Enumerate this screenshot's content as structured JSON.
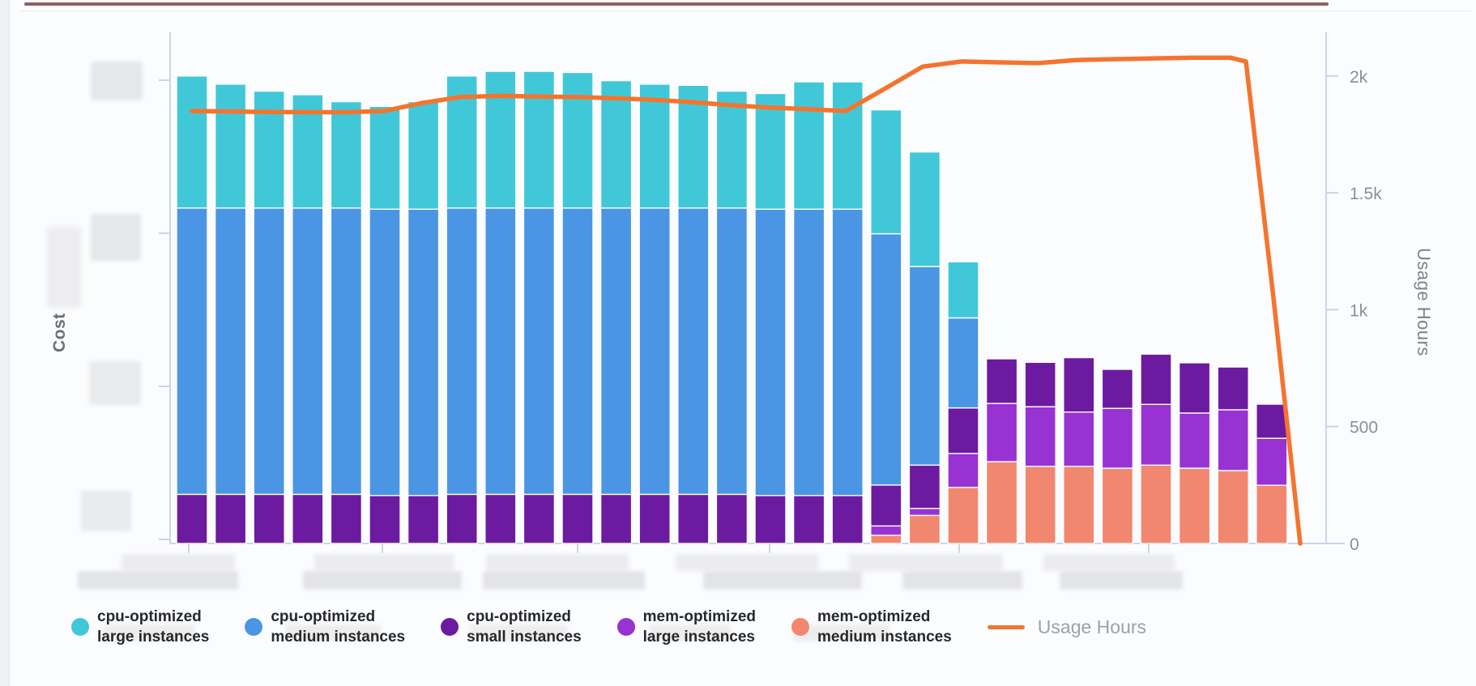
{
  "axes": {
    "y_left": {
      "label": "Cost",
      "tick_labels_redacted": true
    },
    "y_right": {
      "label": "Usage Hours",
      "ticks": [
        {
          "label": "0",
          "value": 0
        },
        {
          "label": "500",
          "value": 500
        },
        {
          "label": "1k",
          "value": 1000
        },
        {
          "label": "1.5k",
          "value": 1500
        },
        {
          "label": "2k",
          "value": 2000
        }
      ]
    },
    "x": {
      "tick_labels_redacted": true
    }
  },
  "chart_data": {
    "type": "combo: stacked bar + line",
    "note": "Left cost axis and x-axis labels are blurred/redacted in source; bar segment values are estimated on the right (Usage Hours) axis scale 0-2100.",
    "stack_order_bottom_to_top": [
      "mem-optimized medium instances",
      "mem-optimized large instances",
      "cpu-optimized small instances",
      "cpu-optimized medium instances",
      "cpu-optimized large instances"
    ],
    "series_colors": {
      "cpu-optimized large instances": "#41c8d8",
      "cpu-optimized medium instances": "#4b96e4",
      "cpu-optimized small instances": "#6c1ba1",
      "mem-optimized large instances": "#9832d3",
      "mem-optimized medium instances": "#f1876f",
      "Usage Hours": "#f4742e"
    },
    "bars": [
      [
        0,
        0,
        210,
        1225,
        565
      ],
      [
        0,
        0,
        210,
        1225,
        530
      ],
      [
        0,
        0,
        210,
        1225,
        500
      ],
      [
        0,
        0,
        210,
        1225,
        485
      ],
      [
        0,
        0,
        210,
        1225,
        455
      ],
      [
        0,
        0,
        205,
        1225,
        440
      ],
      [
        0,
        0,
        205,
        1225,
        460
      ],
      [
        0,
        0,
        210,
        1225,
        565
      ],
      [
        0,
        0,
        210,
        1225,
        585
      ],
      [
        0,
        0,
        210,
        1225,
        585
      ],
      [
        0,
        0,
        210,
        1225,
        580
      ],
      [
        0,
        0,
        210,
        1225,
        545
      ],
      [
        0,
        0,
        210,
        1225,
        530
      ],
      [
        0,
        0,
        210,
        1225,
        525
      ],
      [
        0,
        0,
        210,
        1225,
        500
      ],
      [
        0,
        0,
        205,
        1225,
        495
      ],
      [
        0,
        0,
        205,
        1225,
        545
      ],
      [
        0,
        0,
        205,
        1225,
        545
      ],
      [
        35,
        40,
        175,
        1075,
        530
      ],
      [
        120,
        30,
        185,
        850,
        490
      ],
      [
        240,
        145,
        195,
        385,
        240
      ],
      [
        350,
        249,
        191,
        0,
        0
      ],
      [
        330,
        255,
        190,
        0,
        0
      ],
      [
        330,
        232,
        233,
        0,
        0
      ],
      [
        322,
        256,
        167,
        0,
        0
      ],
      [
        335,
        260,
        215,
        0,
        0
      ],
      [
        322,
        236,
        215,
        0,
        0
      ],
      [
        312,
        260,
        183,
        0,
        0
      ],
      [
        249,
        201,
        146,
        0,
        0
      ]
    ],
    "line": {
      "name": "Usage Hours",
      "color": "#f4742e",
      "points_x_value": [
        [
          237,
          1850
        ],
        [
          284,
          1848
        ],
        [
          332,
          1846
        ],
        [
          379,
          1845
        ],
        [
          427,
          1845
        ],
        [
          474,
          1850
        ],
        [
          522,
          1885
        ],
        [
          569,
          1910
        ],
        [
          617,
          1915
        ],
        [
          664,
          1912
        ],
        [
          712,
          1910
        ],
        [
          759,
          1905
        ],
        [
          807,
          1898
        ],
        [
          854,
          1888
        ],
        [
          902,
          1875
        ],
        [
          949,
          1865
        ],
        [
          997,
          1858
        ],
        [
          1044,
          1850
        ],
        [
          1092,
          1945
        ],
        [
          1139,
          2040
        ],
        [
          1187,
          2062
        ],
        [
          1234,
          2058
        ],
        [
          1282,
          2055
        ],
        [
          1329,
          2068
        ],
        [
          1377,
          2072
        ],
        [
          1424,
          2075
        ],
        [
          1472,
          2078
        ],
        [
          1519,
          2078
        ],
        [
          1538,
          2062
        ],
        [
          1572,
          1050
        ],
        [
          1605,
          0
        ]
      ]
    },
    "y_right_range": [
      0,
      2170
    ],
    "grid": false,
    "legend_position": "bottom"
  },
  "legend": {
    "items": [
      {
        "color": "#41c8d8",
        "line1": "cpu-optimized",
        "line2": "large instances"
      },
      {
        "color": "#4b96e4",
        "line1": "cpu-optimized",
        "line2": "medium instances"
      },
      {
        "color": "#6c1ba1",
        "line1": "cpu-optimized",
        "line2": "small instances"
      },
      {
        "color": "#9832d3",
        "line1": "mem-optimized",
        "line2": "large instances"
      },
      {
        "color": "#f1876f",
        "line1": "mem-optimized",
        "line2": "medium instances"
      },
      {
        "type": "line",
        "color": "#f4742e",
        "label": "Usage Hours"
      }
    ]
  },
  "colors": {
    "axis_line": "#ccd4e6",
    "tick_text": "#8a8f99",
    "page_top_strip": "#774747",
    "redaction_gray": "#e3e4e7"
  }
}
